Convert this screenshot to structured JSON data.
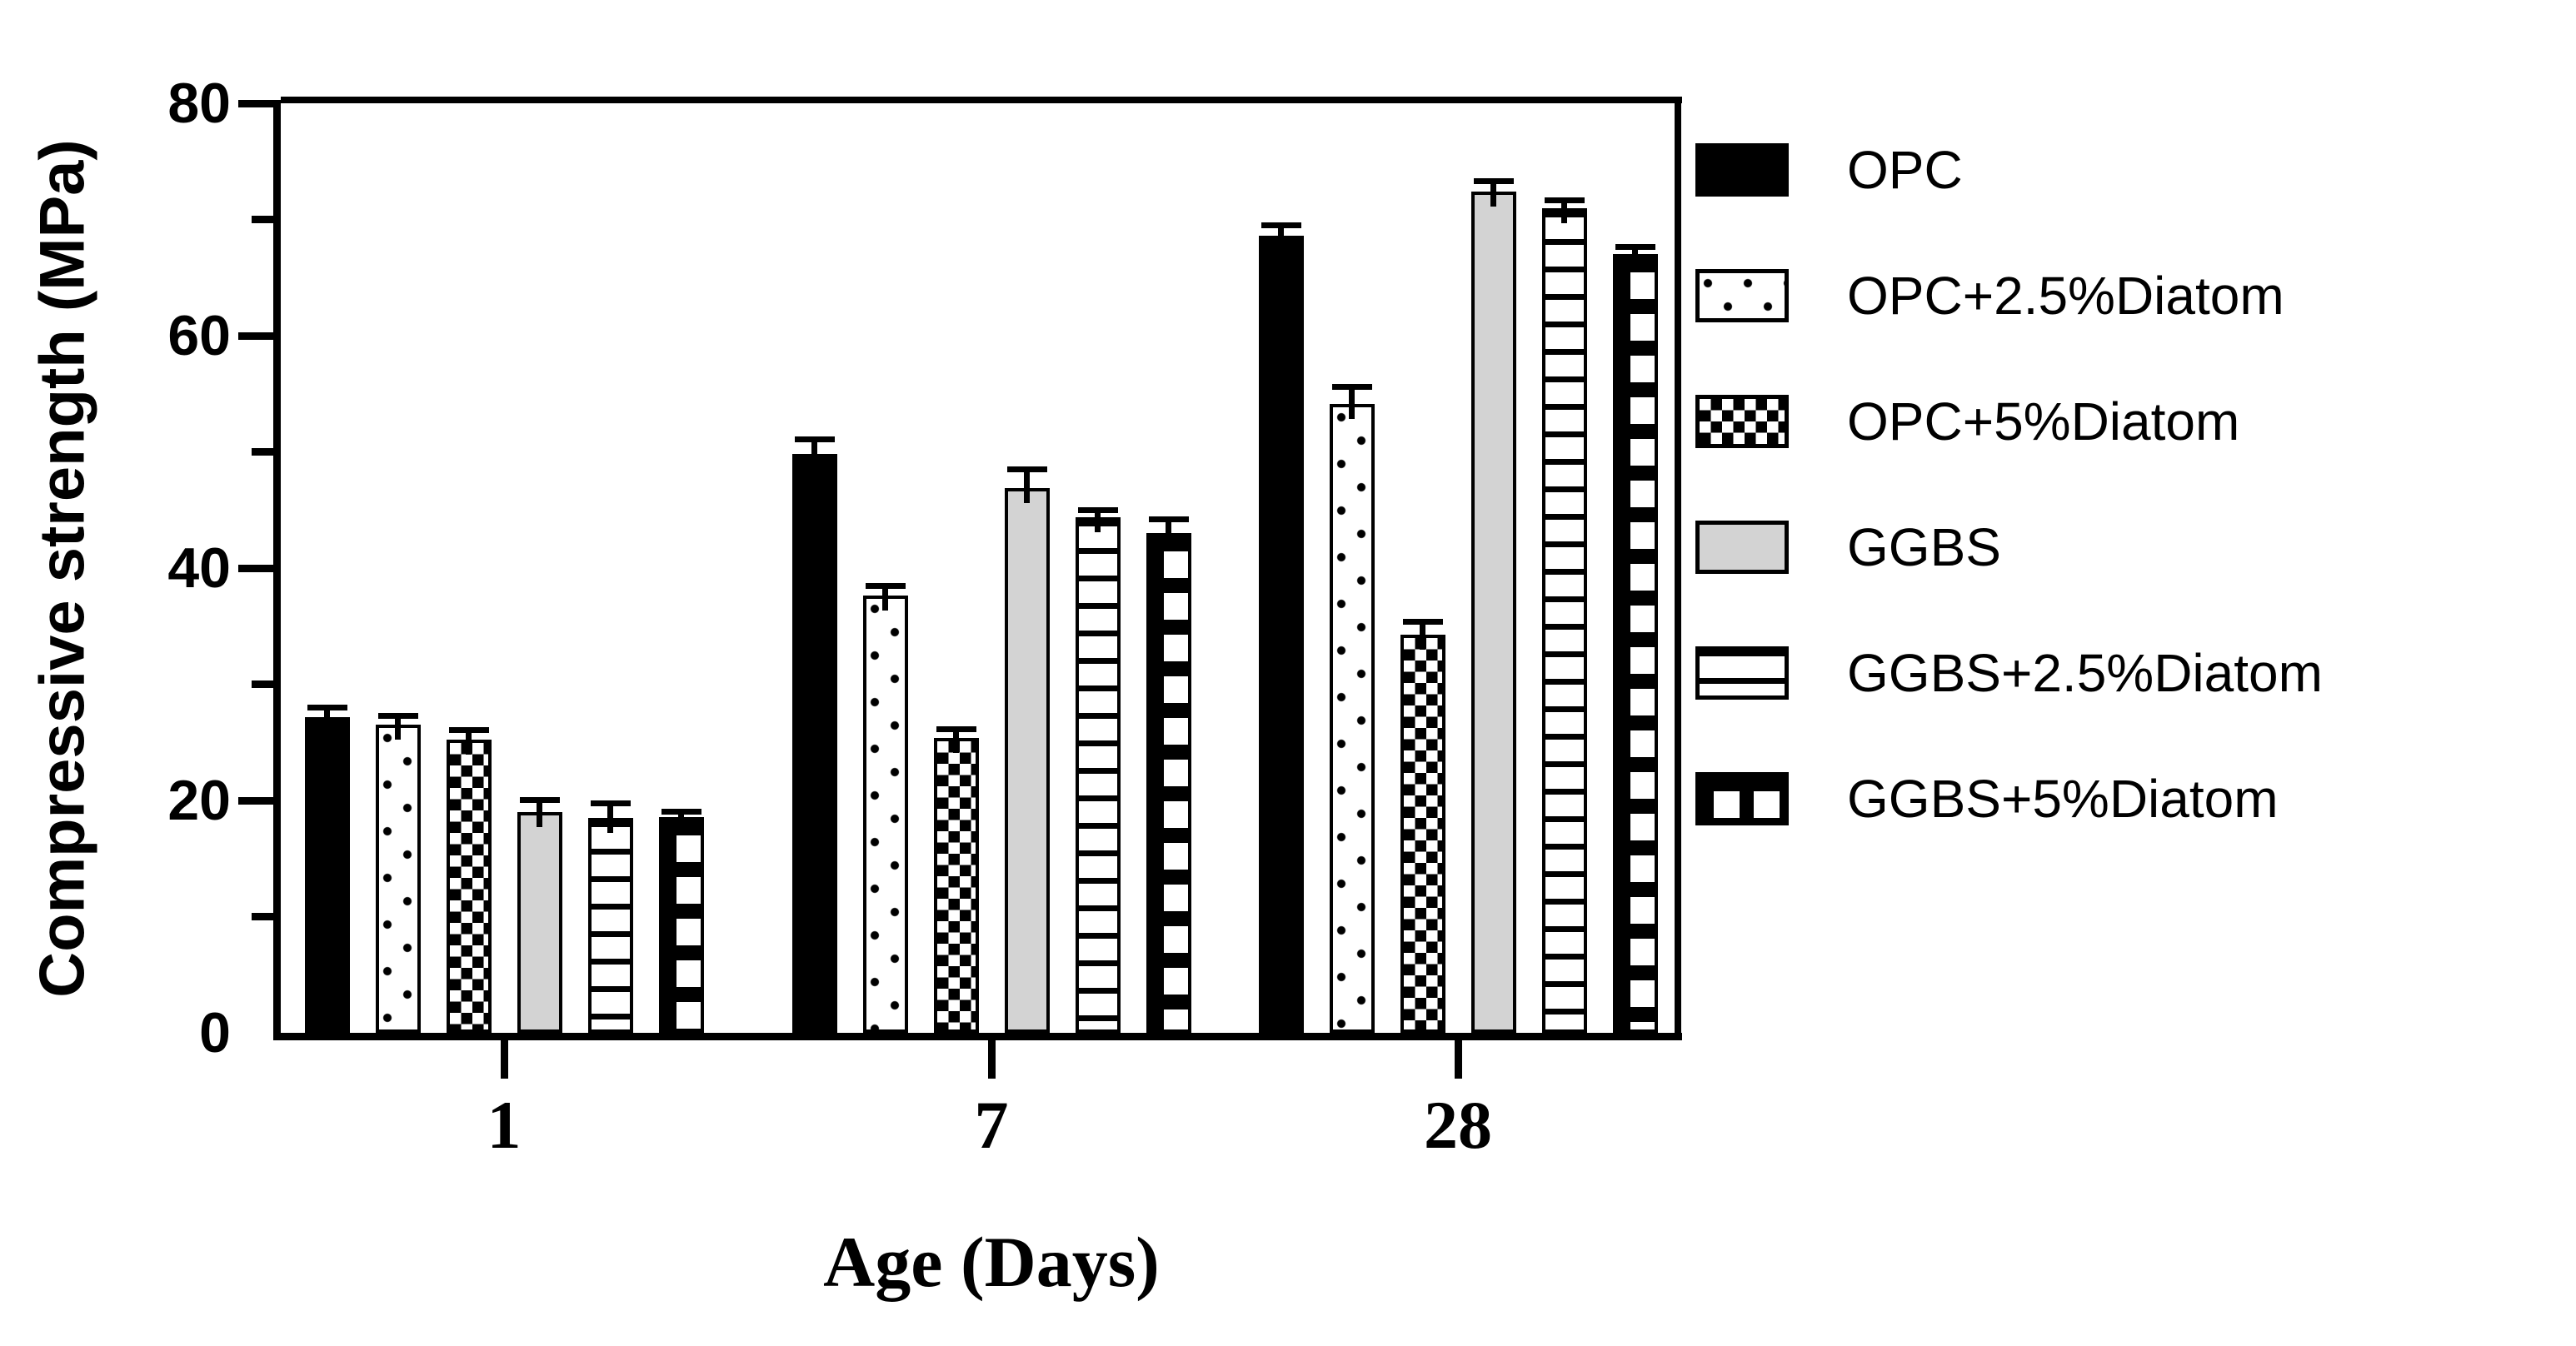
{
  "chart_data": {
    "type": "bar",
    "title": "",
    "xlabel": "Age (Days)",
    "ylabel": "Compressive strength (MPa)",
    "categories": [
      "1",
      "7",
      "28"
    ],
    "series": [
      {
        "name": "OPC",
        "pattern": "solid-black",
        "values": [
          27.2,
          49.8,
          68.6
        ],
        "errors": [
          0.8,
          1.3,
          0.9
        ]
      },
      {
        "name": "OPC+2.5%Diatom",
        "pattern": "dots",
        "values": [
          26.5,
          37.6,
          54.1
        ],
        "errors": [
          0.8,
          0.9,
          1.5
        ]
      },
      {
        "name": "OPC+5%Diatom",
        "pattern": "checker",
        "values": [
          25.2,
          25.4,
          34.3
        ],
        "errors": [
          0.9,
          0.8,
          1.1
        ]
      },
      {
        "name": "GGBS",
        "pattern": "solid-gray",
        "values": [
          19.0,
          46.9,
          72.4
        ],
        "errors": [
          1.1,
          1.6,
          0.9
        ]
      },
      {
        "name": "GGBS+2.5%Diatom",
        "pattern": "hlines",
        "values": [
          18.5,
          44.4,
          71.0
        ],
        "errors": [
          1.3,
          0.6,
          0.7
        ]
      },
      {
        "name": "GGBS+5%Diatom",
        "pattern": "grid",
        "values": [
          18.6,
          43.0,
          67.0
        ],
        "errors": [
          0.5,
          1.2,
          0.7
        ]
      }
    ],
    "ylim": [
      0,
      80
    ],
    "y_major_ticks": [
      0,
      20,
      40,
      60,
      80
    ],
    "y_minor_ticks": [
      10,
      30,
      50,
      70
    ],
    "grid": false,
    "legend_position": "right",
    "error_bars": "upper",
    "colors": {
      "bar_black": "#000000",
      "bar_gray": "#d3d3d3",
      "background": "#ffffff",
      "ink": "#000000"
    }
  }
}
